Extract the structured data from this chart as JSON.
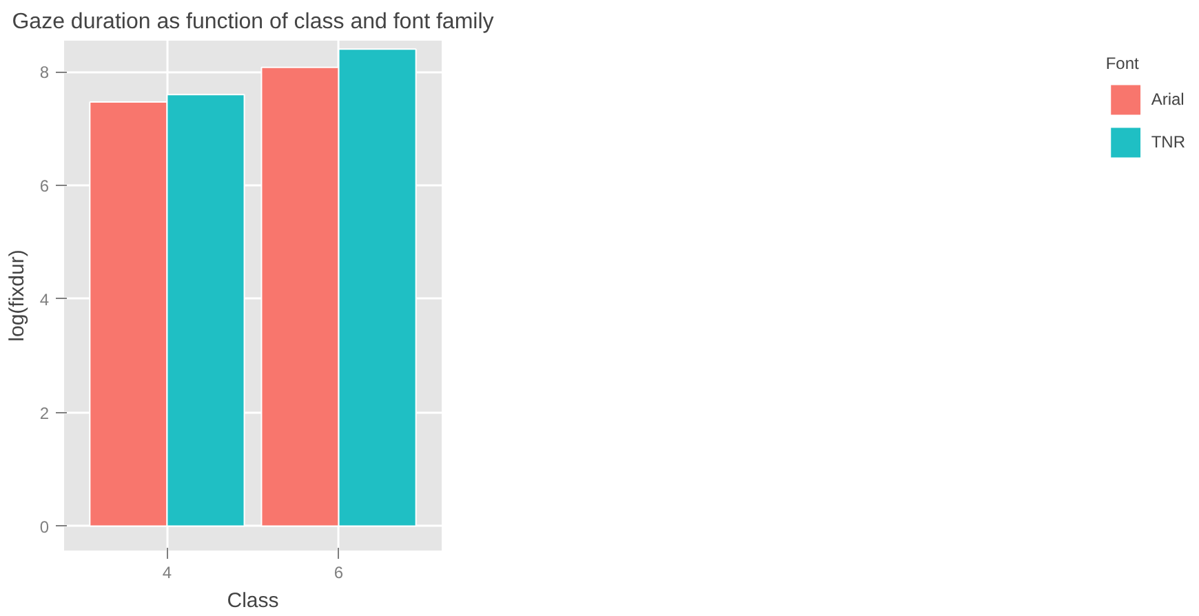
{
  "chart_data": {
    "type": "bar",
    "title": "Gaze duration as function of class and font family",
    "xlabel": "Class",
    "ylabel": "log(fixdur)",
    "legend_title": "Font",
    "categories": [
      "4",
      "6"
    ],
    "series": [
      {
        "name": "Arial",
        "color": "#f8766d",
        "values": [
          7.47,
          8.08
        ]
      },
      {
        "name": "TNR",
        "color": "#1fbfc4",
        "values": [
          7.6,
          8.4
        ]
      }
    ],
    "ylim": [
      -0.43,
      8.55
    ],
    "yticks": [
      0,
      2,
      4,
      6,
      8
    ],
    "grid": true,
    "legend": "right"
  }
}
